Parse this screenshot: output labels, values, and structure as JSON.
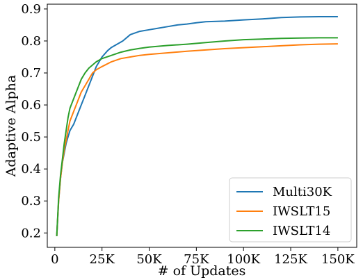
{
  "chart_data": {
    "type": "line",
    "xlabel": "# of Updates",
    "ylabel": "Adaptive Alpha",
    "xlim": [
      -4000,
      160000
    ],
    "ylim": [
      0.155,
      0.915
    ],
    "x_ticks": [
      0,
      25000,
      50000,
      75000,
      100000,
      125000,
      150000
    ],
    "x_tick_labels": [
      "0",
      "25K",
      "50K",
      "75K",
      "100K",
      "125K",
      "150K"
    ],
    "y_ticks": [
      0.2,
      0.3,
      0.4,
      0.5,
      0.6,
      0.7,
      0.8,
      0.9
    ],
    "y_tick_labels": [
      "0.2",
      "0.3",
      "0.4",
      "0.5",
      "0.6",
      "0.7",
      "0.8",
      "0.9"
    ],
    "grid": false,
    "legend_position": "bottom-right",
    "series": [
      {
        "name": "Multi30K",
        "color": "#1f77b4",
        "points": [
          [
            1000,
            0.19
          ],
          [
            2000,
            0.3
          ],
          [
            3000,
            0.37
          ],
          [
            4000,
            0.42
          ],
          [
            5000,
            0.45
          ],
          [
            6000,
            0.48
          ],
          [
            7000,
            0.5
          ],
          [
            8000,
            0.52
          ],
          [
            10000,
            0.54
          ],
          [
            12000,
            0.57
          ],
          [
            14000,
            0.6
          ],
          [
            16000,
            0.63
          ],
          [
            18000,
            0.66
          ],
          [
            20000,
            0.69
          ],
          [
            22000,
            0.72
          ],
          [
            25000,
            0.75
          ],
          [
            28000,
            0.77
          ],
          [
            30000,
            0.78
          ],
          [
            33000,
            0.79
          ],
          [
            36000,
            0.8
          ],
          [
            40000,
            0.82
          ],
          [
            45000,
            0.83
          ],
          [
            50000,
            0.835
          ],
          [
            55000,
            0.84
          ],
          [
            60000,
            0.845
          ],
          [
            65000,
            0.85
          ],
          [
            70000,
            0.853
          ],
          [
            75000,
            0.857
          ],
          [
            80000,
            0.86
          ],
          [
            90000,
            0.862
          ],
          [
            100000,
            0.866
          ],
          [
            110000,
            0.869
          ],
          [
            120000,
            0.873
          ],
          [
            130000,
            0.875
          ],
          [
            140000,
            0.876
          ],
          [
            150000,
            0.876
          ]
        ]
      },
      {
        "name": "IWSLT15",
        "color": "#ff7f0e",
        "points": [
          [
            1000,
            0.19
          ],
          [
            2000,
            0.3
          ],
          [
            3000,
            0.37
          ],
          [
            4000,
            0.42
          ],
          [
            5000,
            0.46
          ],
          [
            6000,
            0.49
          ],
          [
            7000,
            0.52
          ],
          [
            8000,
            0.55
          ],
          [
            10000,
            0.58
          ],
          [
            12000,
            0.61
          ],
          [
            14000,
            0.64
          ],
          [
            16000,
            0.66
          ],
          [
            18000,
            0.68
          ],
          [
            20000,
            0.7
          ],
          [
            22000,
            0.71
          ],
          [
            25000,
            0.72
          ],
          [
            30000,
            0.735
          ],
          [
            35000,
            0.745
          ],
          [
            40000,
            0.75
          ],
          [
            45000,
            0.755
          ],
          [
            50000,
            0.758
          ],
          [
            60000,
            0.763
          ],
          [
            70000,
            0.768
          ],
          [
            80000,
            0.772
          ],
          [
            90000,
            0.776
          ],
          [
            100000,
            0.779
          ],
          [
            110000,
            0.782
          ],
          [
            120000,
            0.785
          ],
          [
            130000,
            0.788
          ],
          [
            140000,
            0.79
          ],
          [
            150000,
            0.791
          ]
        ]
      },
      {
        "name": "IWSLT14",
        "color": "#2ca02c",
        "points": [
          [
            1000,
            0.19
          ],
          [
            2000,
            0.31
          ],
          [
            3000,
            0.38
          ],
          [
            4000,
            0.43
          ],
          [
            5000,
            0.48
          ],
          [
            6000,
            0.52
          ],
          [
            7000,
            0.56
          ],
          [
            8000,
            0.59
          ],
          [
            10000,
            0.62
          ],
          [
            12000,
            0.65
          ],
          [
            14000,
            0.68
          ],
          [
            16000,
            0.7
          ],
          [
            18000,
            0.715
          ],
          [
            20000,
            0.725
          ],
          [
            22000,
            0.735
          ],
          [
            25000,
            0.745
          ],
          [
            30000,
            0.755
          ],
          [
            35000,
            0.765
          ],
          [
            40000,
            0.772
          ],
          [
            45000,
            0.777
          ],
          [
            50000,
            0.781
          ],
          [
            60000,
            0.786
          ],
          [
            70000,
            0.79
          ],
          [
            80000,
            0.795
          ],
          [
            90000,
            0.8
          ],
          [
            100000,
            0.804
          ],
          [
            110000,
            0.806
          ],
          [
            120000,
            0.808
          ],
          [
            130000,
            0.809
          ],
          [
            140000,
            0.81
          ],
          [
            150000,
            0.81
          ]
        ]
      }
    ]
  }
}
